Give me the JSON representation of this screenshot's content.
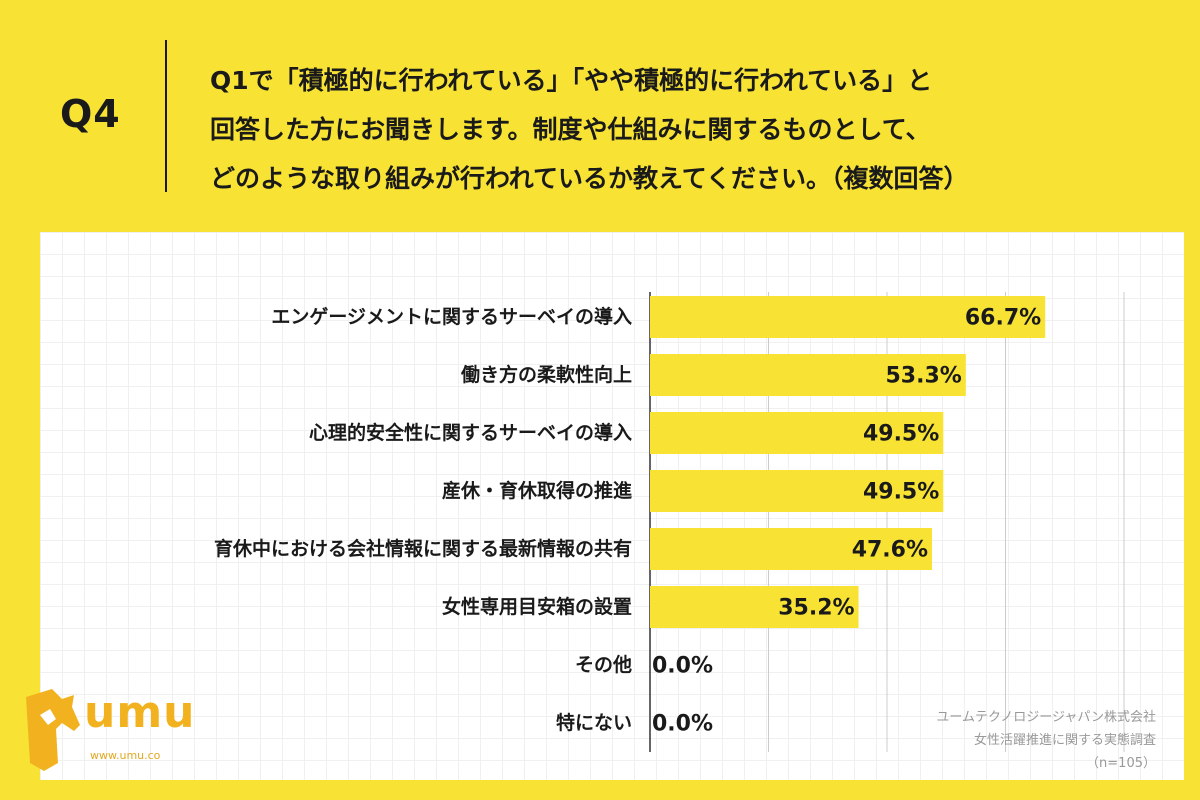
{
  "header": {
    "question_number": "Q4",
    "question_lines": [
      "Q1で「積極的に行われている」「やや積極的に行われている」と",
      "回答した方にお聞きします。制度や仕組みに関するものとして、",
      "どのような取り組みが行われているか教えてください。（複数回答）"
    ]
  },
  "colors": {
    "background": "#f8e335",
    "bar": "#f8e335",
    "grid": "#cccccc",
    "logo": "#f2b21f"
  },
  "chart_data": {
    "type": "bar",
    "orientation": "horizontal",
    "categories": [
      "エンゲージメントに関するサーベイの導入",
      "働き方の柔軟性向上",
      "心理的安全性に関するサーベイの導入",
      "産休・育休取得の推進",
      "育休中における会社情報に関する最新情報の共有",
      "女性専用目安箱の設置",
      "その他",
      "特にない"
    ],
    "values": [
      66.7,
      53.3,
      49.5,
      49.5,
      47.6,
      35.2,
      0.0,
      0.0
    ],
    "value_labels": [
      "66.7%",
      "53.3%",
      "49.5%",
      "49.5%",
      "47.6%",
      "35.2%",
      "0.0%",
      "0.0%"
    ],
    "xlim": [
      0,
      80
    ],
    "gridline_values": [
      0,
      20,
      40,
      60,
      80
    ],
    "grid": true,
    "legend": "none"
  },
  "logo": {
    "mark_icon": "umu-horse-logo-icon",
    "text": "umu",
    "url": "www.umu.co"
  },
  "source": {
    "company": "ユームテクノロジージャパン株式会社",
    "survey": "女性活躍推進に関する実態調査",
    "sample": "（n=105）"
  }
}
